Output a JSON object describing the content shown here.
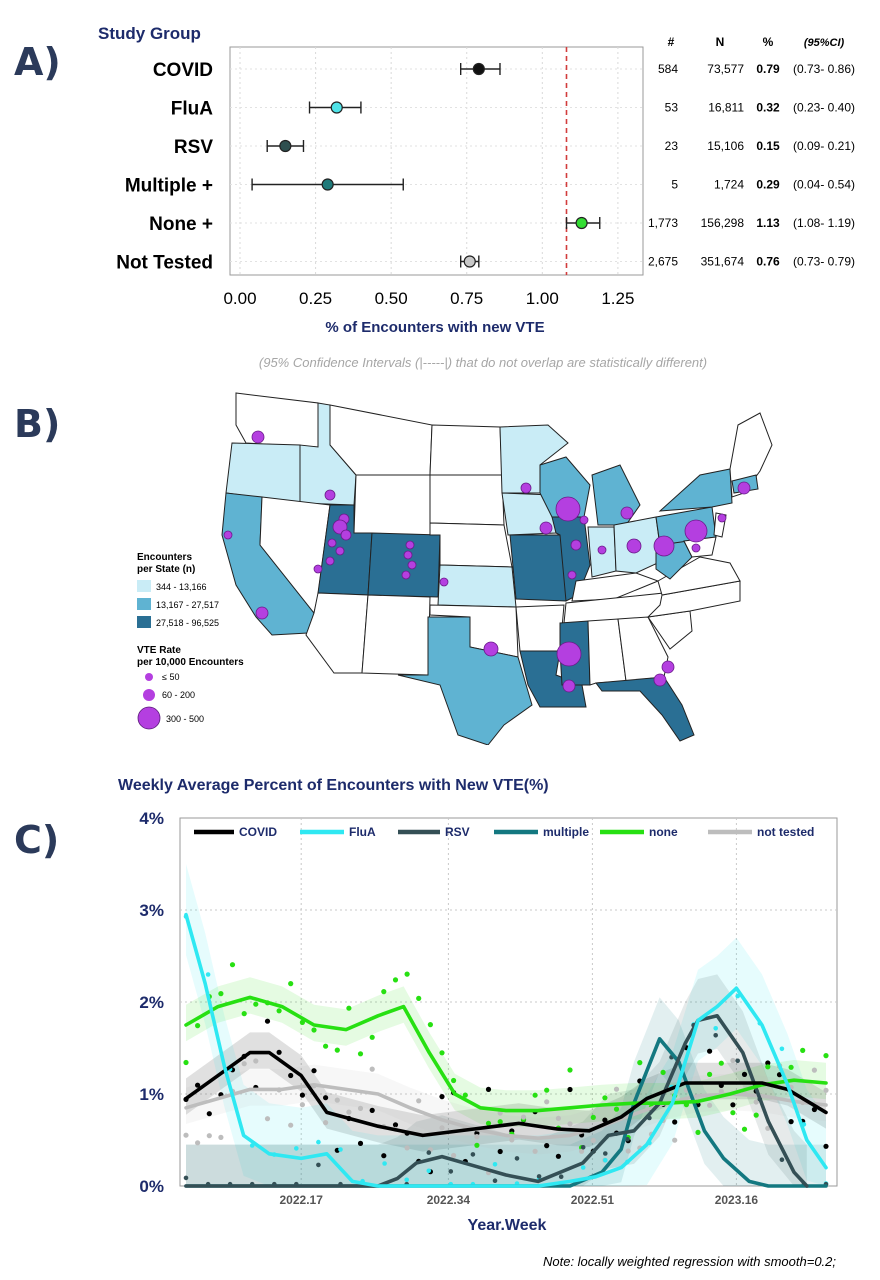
{
  "panels": {
    "a": "A)",
    "b": "B)",
    "c": "C)"
  },
  "panel_a": {
    "header_title": "Study Group",
    "col_headers": {
      "count": "#",
      "n": "N",
      "pct": "%",
      "ci": "(95%CI)"
    },
    "xlabel": "% of Encounters with new VTE",
    "note": "(95% Confidence Intervals (|-----|) that do not overlap are statistically different)",
    "reference_line": 1.08,
    "colors": {
      "ref": "#d23c3c",
      "border": "#9a9a9a",
      "grid": "#d9d9d9"
    }
  },
  "panel_b": {
    "legend": {
      "title_enc_1": "Encounters",
      "title_enc_2": "per State (n)",
      "bins": [
        "344 - 13,166",
        "13,167 - 27,517",
        "27,518 - 96,525"
      ],
      "bin_colors": [
        "#c9ecf6",
        "#5fb3d2",
        "#2a6f94"
      ],
      "title_vte_1": "VTE Rate",
      "title_vte_2": "per 10,000 Encounters",
      "sizes": [
        "≤ 50",
        "60 - 200",
        "300 - 500"
      ]
    },
    "bubble_color": "#b43fe0"
  },
  "panel_c": {
    "title": "Weekly Average Percent of Encounters with New VTE(%)",
    "xlabel": "Year.Week",
    "note": "Note: locally weighted regression with smooth=0.2;"
  },
  "chart_data": [
    {
      "type": "scatter",
      "subtype": "forest-plot",
      "title": "",
      "xlabel": "% of Encounters with new VTE",
      "xlim": [
        0,
        1.3
      ],
      "xticks": [
        "0.00",
        "0.25",
        "0.50",
        "0.75",
        "1.00",
        "1.25"
      ],
      "xtick_values": [
        0,
        0.25,
        0.5,
        0.75,
        1.0,
        1.25
      ],
      "reference_line": 1.08,
      "rows": [
        {
          "group": "COVID",
          "count": "584",
          "n": "73,577",
          "pct": "0.79",
          "ci_text": "(0.73- 0.86)",
          "est": 0.79,
          "lo": 0.73,
          "hi": 0.86,
          "color": "#111111"
        },
        {
          "group": "FluA",
          "count": "53",
          "n": "16,811",
          "pct": "0.32",
          "ci_text": "(0.23- 0.40)",
          "est": 0.32,
          "lo": 0.23,
          "hi": 0.4,
          "color": "#4fe3e8"
        },
        {
          "group": "RSV",
          "count": "23",
          "n": "15,106",
          "pct": "0.15",
          "ci_text": "(0.09- 0.21)",
          "est": 0.15,
          "lo": 0.09,
          "hi": 0.21,
          "color": "#2f4f4f"
        },
        {
          "group": "Multiple +",
          "count": "5",
          "n": "1,724",
          "pct": "0.29",
          "ci_text": "(0.04- 0.54)",
          "est": 0.29,
          "lo": 0.04,
          "hi": 0.54,
          "color": "#1f7a7a"
        },
        {
          "group": "None +",
          "count": "1,773",
          "n": "156,298",
          "pct": "1.13",
          "ci_text": "(1.08- 1.19)",
          "est": 1.13,
          "lo": 1.08,
          "hi": 1.19,
          "color": "#33dd33"
        },
        {
          "group": "Not Tested",
          "count": "2,675",
          "n": "351,674",
          "pct": "0.76",
          "ci_text": "(0.73- 0.79)",
          "est": 0.76,
          "lo": 0.73,
          "hi": 0.79,
          "color": "#c8c8c8"
        }
      ]
    },
    {
      "type": "line",
      "title": "Weekly Average Percent of Encounters with New VTE(%)",
      "xlabel": "Year.Week",
      "ylabel": "",
      "ylim": [
        0,
        4
      ],
      "yticks": [
        "0%",
        "1%",
        "2%",
        "3%",
        "4%"
      ],
      "xlim": [
        2022.01,
        2023.3
      ],
      "xticks": [
        {
          "label": "2022.17",
          "pos": 0.18
        },
        {
          "label": "2022.34",
          "pos": 0.41
        },
        {
          "label": "2022.51",
          "pos": 0.635
        },
        {
          "label": "2023.16",
          "pos": 0.86
        }
      ],
      "series": [
        {
          "name": "COVID",
          "color": "#000000",
          "x": [
            0.0,
            0.05,
            0.1,
            0.13,
            0.18,
            0.22,
            0.3,
            0.37,
            0.45,
            0.52,
            0.58,
            0.63,
            0.68,
            0.72,
            0.78,
            0.84,
            0.9,
            0.94,
            1.0
          ],
          "y": [
            0.95,
            1.2,
            1.45,
            1.45,
            1.2,
            0.8,
            0.65,
            0.55,
            0.62,
            0.68,
            0.62,
            0.6,
            0.75,
            0.95,
            1.12,
            1.12,
            1.12,
            1.05,
            0.8
          ]
        },
        {
          "name": "FluA",
          "color": "#2fe8f2",
          "x": [
            0.0,
            0.03,
            0.06,
            0.09,
            0.13,
            0.18,
            0.22,
            0.26,
            0.3,
            0.55,
            0.6,
            0.64,
            0.68,
            0.72,
            0.76,
            0.8,
            0.83,
            0.86,
            0.9,
            0.94,
            0.97,
            1.0
          ],
          "y": [
            2.95,
            2.2,
            1.3,
            0.55,
            0.35,
            0.3,
            0.35,
            0.05,
            0.0,
            0.0,
            0.05,
            0.1,
            0.2,
            0.45,
            0.9,
            1.8,
            1.95,
            2.15,
            1.75,
            1.1,
            0.5,
            0.2
          ]
        },
        {
          "name": "RSV",
          "color": "#344f55",
          "x": [
            0.0,
            0.3,
            0.33,
            0.36,
            0.4,
            0.45,
            0.5,
            0.55,
            0.62,
            0.66,
            0.7,
            0.74,
            0.78,
            0.8,
            0.83,
            0.87,
            0.91,
            0.95,
            0.97
          ],
          "y": [
            0.0,
            0.0,
            0.08,
            0.25,
            0.32,
            0.22,
            0.12,
            0.05,
            0.25,
            0.55,
            0.6,
            0.9,
            1.55,
            1.8,
            1.85,
            1.45,
            0.7,
            0.15,
            0.0
          ]
        },
        {
          "name": "multiple",
          "color": "#137880",
          "x": [
            0.0,
            0.5,
            0.6,
            0.65,
            0.68,
            0.7,
            0.74,
            0.77,
            0.81,
            0.84,
            0.88,
            0.91,
            1.0
          ],
          "y": [
            0.0,
            0.0,
            0.0,
            0.15,
            0.4,
            0.9,
            1.6,
            1.35,
            0.6,
            0.3,
            0.05,
            0.0,
            0.0
          ]
        },
        {
          "name": "none",
          "color": "#27e012",
          "x": [
            0.0,
            0.05,
            0.1,
            0.15,
            0.2,
            0.25,
            0.3,
            0.34,
            0.38,
            0.42,
            0.46,
            0.5,
            0.55,
            0.6,
            0.65,
            0.7,
            0.75,
            0.8,
            0.85,
            0.9,
            0.95,
            1.0
          ],
          "y": [
            1.75,
            1.95,
            2.05,
            1.95,
            1.75,
            1.7,
            1.85,
            1.95,
            1.45,
            1.0,
            0.85,
            0.82,
            0.82,
            0.85,
            0.88,
            0.9,
            0.9,
            0.92,
            1.0,
            1.1,
            1.15,
            1.12
          ]
        },
        {
          "name": "not tested",
          "color": "#bdbdbd",
          "x": [
            0.0,
            0.05,
            0.1,
            0.15,
            0.2,
            0.25,
            0.3,
            0.35,
            0.4,
            0.45,
            0.5,
            0.55,
            0.6,
            0.65,
            0.7,
            0.75,
            0.8,
            0.85,
            0.9,
            0.95,
            1.0
          ],
          "y": [
            0.85,
            0.95,
            1.05,
            1.05,
            1.1,
            1.05,
            1.0,
            0.85,
            0.72,
            0.62,
            0.55,
            0.52,
            0.55,
            0.65,
            0.78,
            0.9,
            0.98,
            1.0,
            0.98,
            0.92,
            0.88
          ]
        }
      ]
    }
  ]
}
